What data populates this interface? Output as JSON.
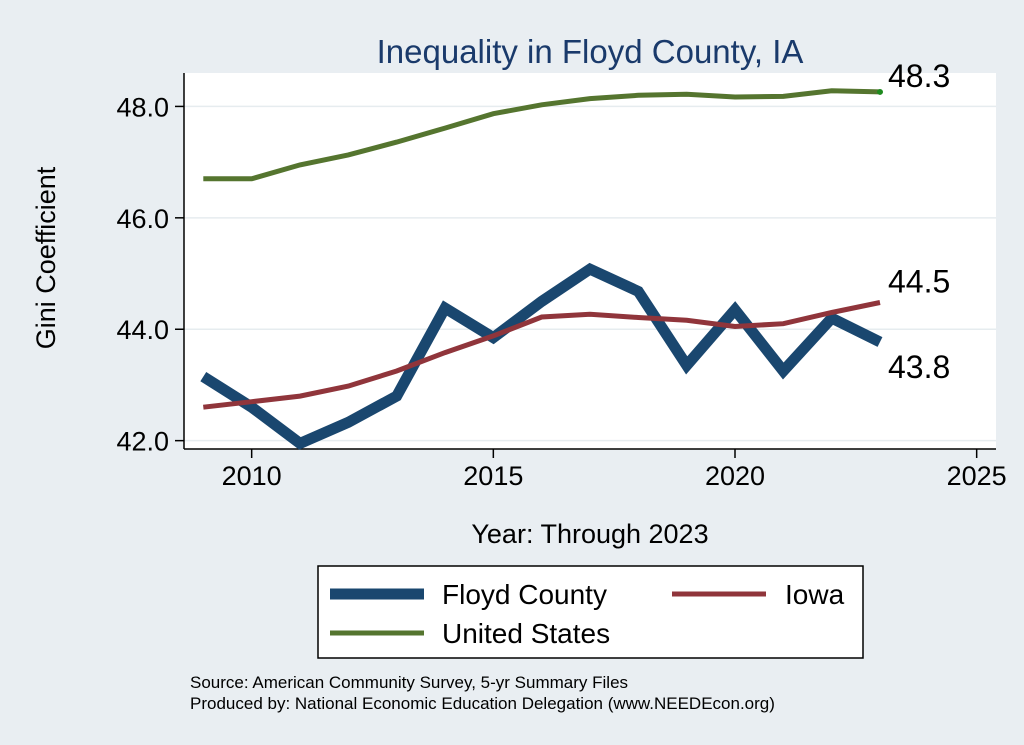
{
  "chart_data": {
    "type": "line",
    "title": "Inequality in Floyd County, IA",
    "xlabel": "Year: Through 2023",
    "ylabel": "Gini Coefficient",
    "xlim": [
      2008.6,
      2025.4
    ],
    "ylim": [
      41.85,
      48.6
    ],
    "x_ticks": [
      2010,
      2015,
      2020,
      2025
    ],
    "y_ticks": [
      42.0,
      44.0,
      46.0,
      48.0
    ],
    "x_tick_labels": [
      "2010",
      "2015",
      "2020",
      "2025"
    ],
    "y_tick_labels": [
      "42.0",
      "44.0",
      "46.0",
      "48.0"
    ],
    "x": [
      2009,
      2010,
      2011,
      2012,
      2013,
      2014,
      2015,
      2016,
      2017,
      2018,
      2019,
      2020,
      2021,
      2022,
      2023
    ],
    "series": [
      {
        "name": "Floyd County",
        "color": "#1a476f",
        "values": [
          43.15,
          42.6,
          41.95,
          42.33,
          42.8,
          44.38,
          43.85,
          44.5,
          45.08,
          44.68,
          43.35,
          44.35,
          43.25,
          44.2,
          43.77
        ],
        "end_label": "43.8"
      },
      {
        "name": "Iowa",
        "color": "#90353b",
        "values": [
          42.6,
          42.7,
          42.8,
          42.98,
          43.25,
          43.58,
          43.88,
          44.22,
          44.27,
          44.21,
          44.16,
          44.05,
          44.1,
          44.3,
          44.48
        ],
        "end_label": "44.5"
      },
      {
        "name": "United States",
        "color": "#55752f",
        "values": [
          46.7,
          46.7,
          46.95,
          47.13,
          47.36,
          47.61,
          47.87,
          48.03,
          48.14,
          48.2,
          48.22,
          48.17,
          48.18,
          48.28,
          48.26
        ],
        "end_label": "48.3"
      }
    ],
    "legend": {
      "position": "bottom",
      "entries": [
        "Floyd County",
        "Iowa",
        "United States"
      ]
    },
    "grid": true
  },
  "footer": {
    "source": "Source: American Community Survey, 5-yr Summary Files",
    "produced_by": "Produced by: National Economic Education Delegation (www.NEEDEcon.org)"
  },
  "colors": {
    "background": "#e9eef2",
    "plot_background": "#ffffff",
    "title": "#1a3a6b"
  }
}
